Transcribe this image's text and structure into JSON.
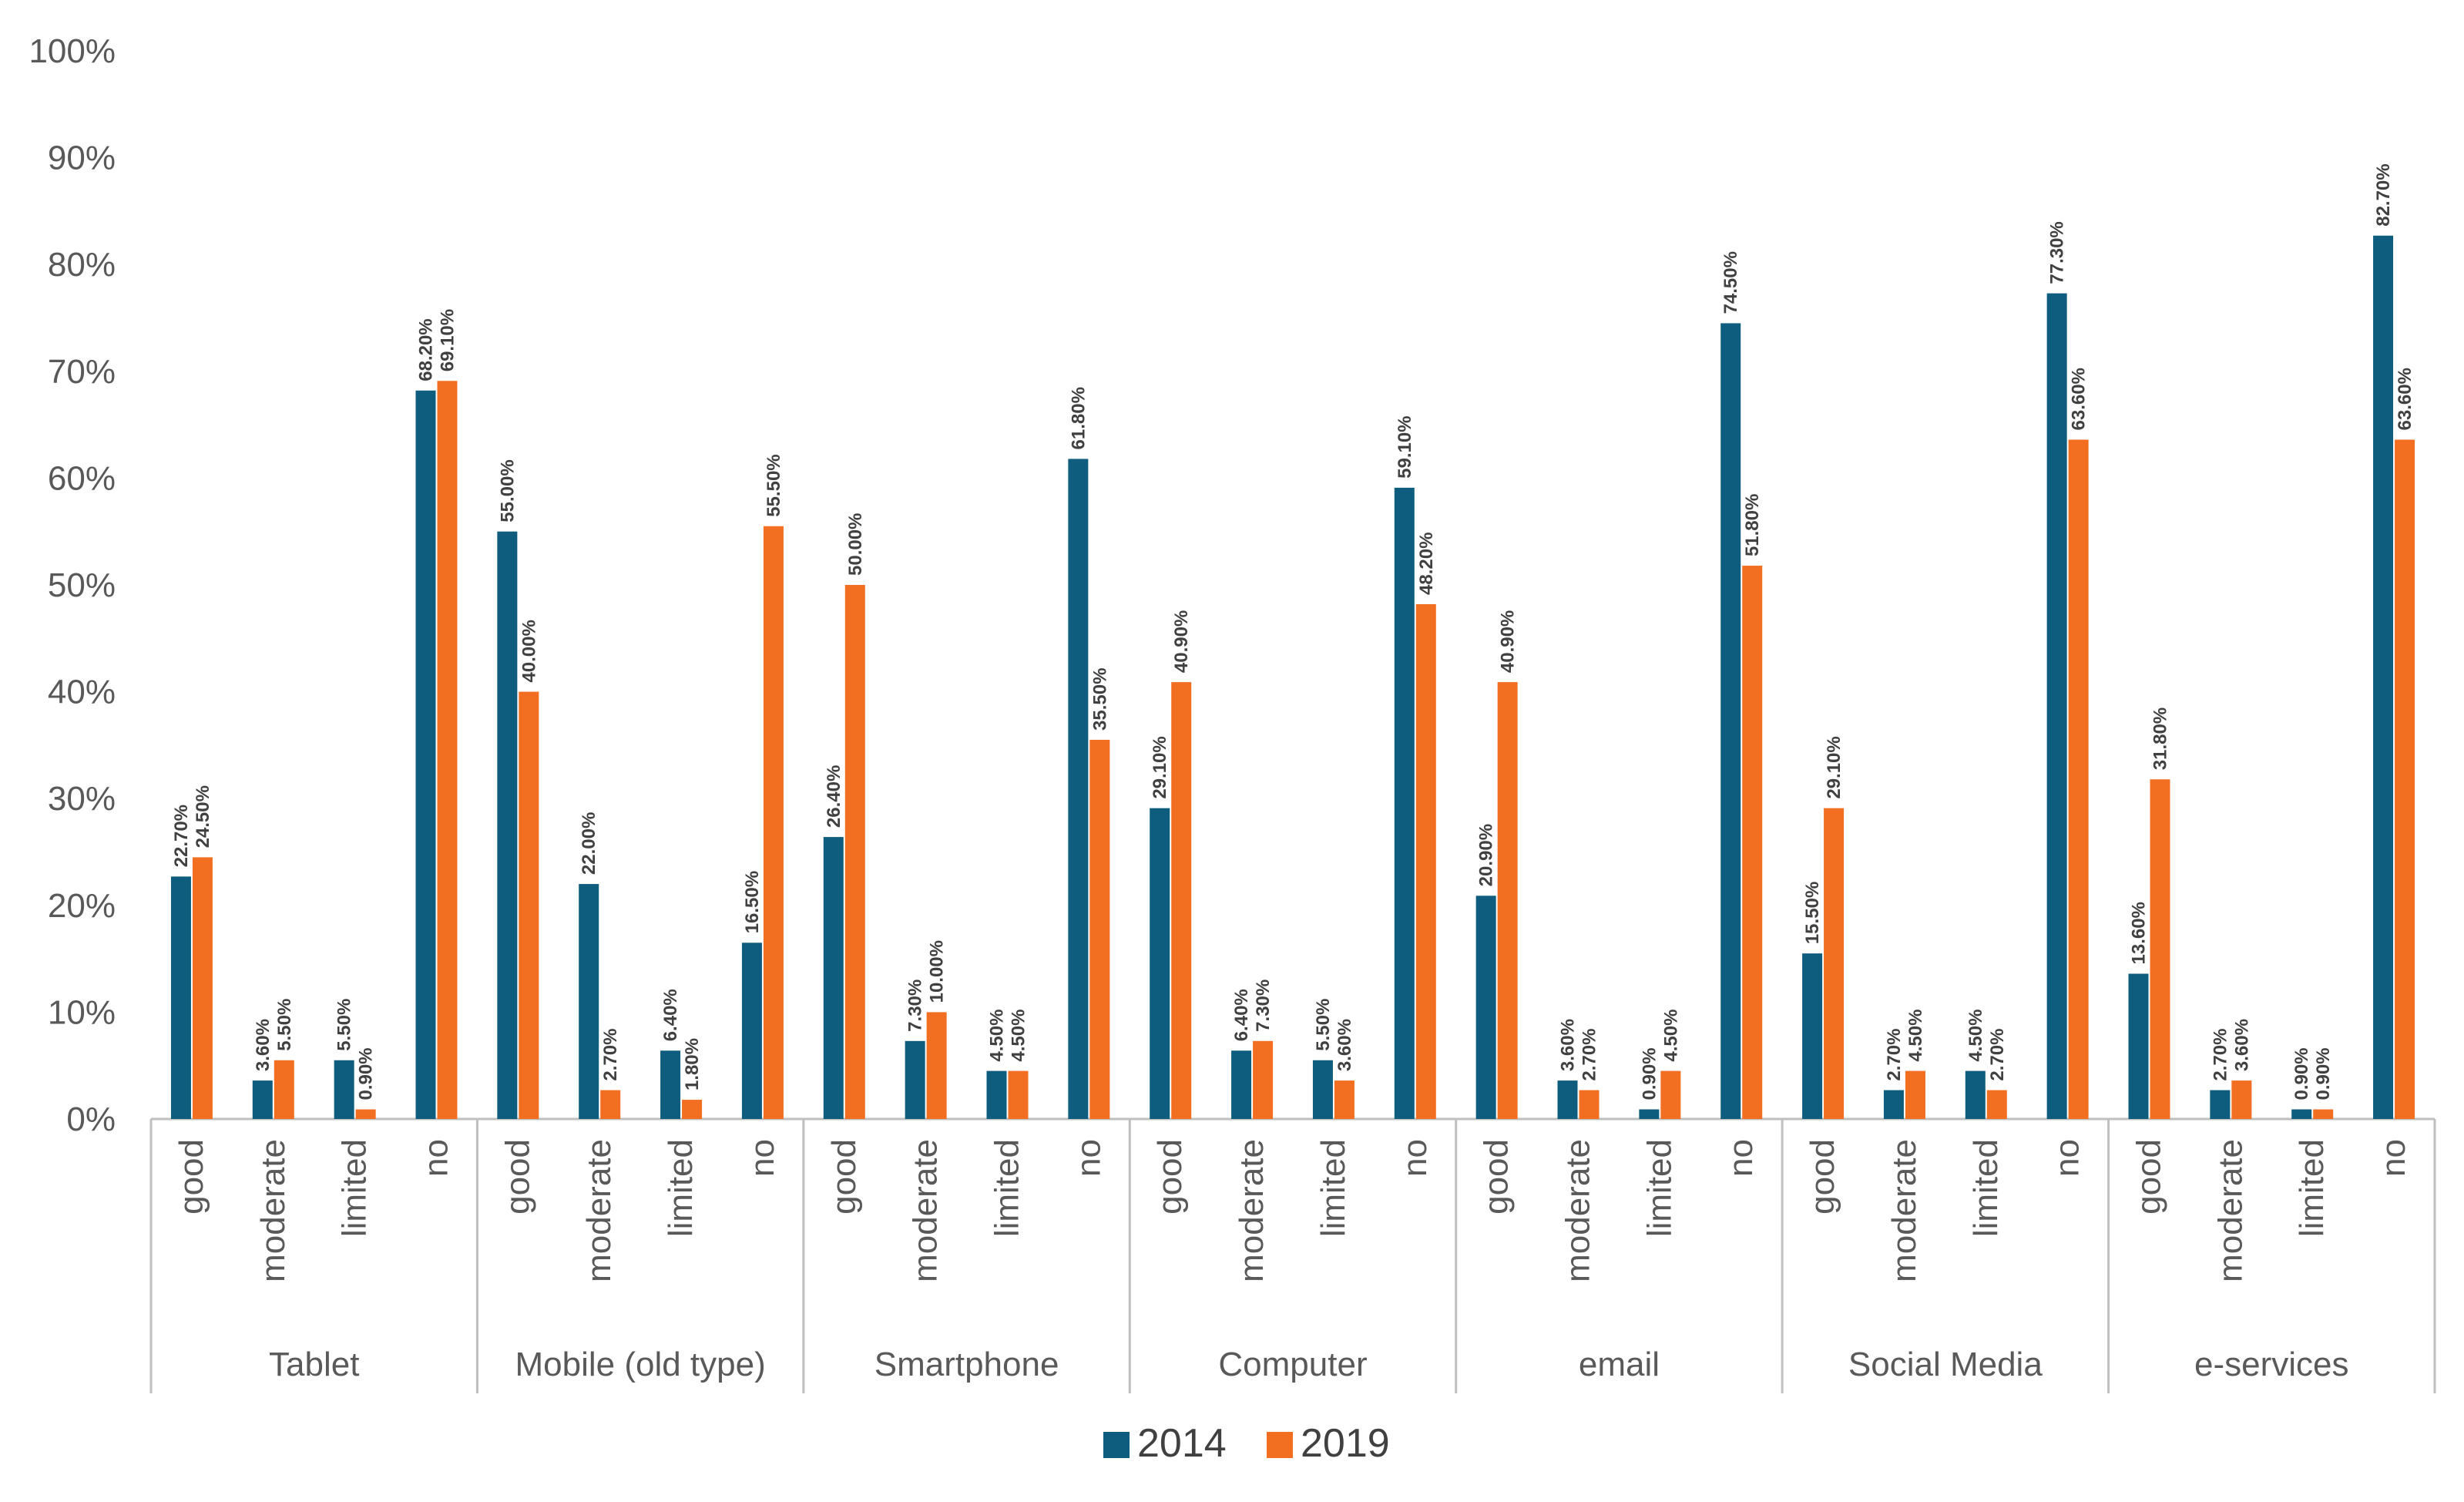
{
  "chart_data": {
    "type": "bar",
    "title": "",
    "xlabel": "",
    "ylabel": "",
    "ylim": [
      0,
      100
    ],
    "y_ticks": [
      "0%",
      "10%",
      "20%",
      "30%",
      "40%",
      "50%",
      "60%",
      "70%",
      "80%",
      "90%",
      "100%"
    ],
    "grid": false,
    "legend_position": "bottom",
    "groups": [
      "Tablet",
      "Mobile (old type)",
      "Smartphone",
      "Computer",
      "email",
      "Social Media",
      "e-services"
    ],
    "categories": [
      "good",
      "moderate",
      "limited",
      "no"
    ],
    "series": [
      {
        "name": "2014",
        "color": "#0f5d7e",
        "values": [
          [
            22.7,
            3.6,
            5.5,
            68.2
          ],
          [
            55.0,
            22.0,
            6.4,
            16.5
          ],
          [
            26.4,
            7.3,
            4.5,
            61.8
          ],
          [
            29.1,
            6.4,
            5.5,
            59.1
          ],
          [
            20.9,
            3.6,
            0.9,
            74.5
          ],
          [
            15.5,
            2.7,
            4.5,
            77.3
          ],
          [
            13.6,
            2.7,
            0.9,
            82.7
          ]
        ],
        "labels": [
          [
            "22.70%",
            "3.60%",
            "5.50%",
            "68.20%"
          ],
          [
            "55.00%",
            "22.00%",
            "6.40%",
            "16.50%"
          ],
          [
            "26.40%",
            "7.30%",
            "4.50%",
            "61.80%"
          ],
          [
            "29.10%",
            "6.40%",
            "5.50%",
            "59.10%"
          ],
          [
            "20.90%",
            "3.60%",
            "0.90%",
            "74.50%"
          ],
          [
            "15.50%",
            "2.70%",
            "4.50%",
            "77.30%"
          ],
          [
            "13.60%",
            "2.70%",
            "0.90%",
            "82.70%"
          ]
        ]
      },
      {
        "name": "2019",
        "color": "#f26f21",
        "values": [
          [
            24.5,
            5.5,
            0.9,
            69.1
          ],
          [
            40.0,
            2.7,
            1.8,
            55.5
          ],
          [
            50.0,
            10.0,
            4.5,
            35.5
          ],
          [
            40.9,
            7.3,
            3.6,
            48.2
          ],
          [
            40.9,
            2.7,
            4.5,
            51.8
          ],
          [
            29.1,
            4.5,
            2.7,
            63.6
          ],
          [
            31.8,
            3.6,
            0.9,
            63.6
          ]
        ],
        "labels": [
          [
            "24.50%",
            "5.50%",
            "0.90%",
            "69.10%"
          ],
          [
            "40.00%",
            "2.70%",
            "1.80%",
            "55.50%"
          ],
          [
            "50.00%",
            "10.00%",
            "4.50%",
            "35.50%"
          ],
          [
            "40.90%",
            "7.30%",
            "3.60%",
            "48.20%"
          ],
          [
            "40.90%",
            "2.70%",
            "4.50%",
            "51.80%"
          ],
          [
            "29.10%",
            "4.50%",
            "2.70%",
            "63.60%"
          ],
          [
            "31.80%",
            "3.60%",
            "0.90%",
            "63.60%"
          ]
        ]
      }
    ]
  }
}
